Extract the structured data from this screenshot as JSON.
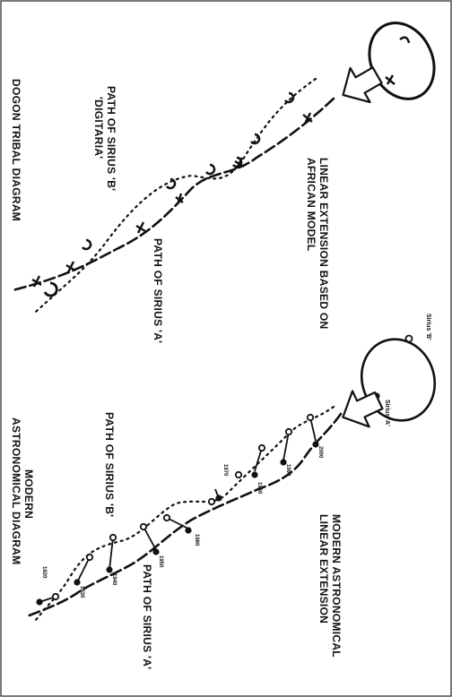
{
  "labels": {
    "dogon_caption": "DOGON TRIBAL DIAGRAM",
    "digitaria_line1": "PATH OF SIRIUS 'B'",
    "digitaria_line2": "'DIGITARIA'",
    "african_line1": "LINEAR EXTENSION BASED ON",
    "african_line2": "AFRICAN MODEL",
    "dogon_path_a": "PATH OF SIRIUS 'A'",
    "modern_caption_line1": "MODERN",
    "modern_caption_line2": "ASTRONOMICAL DIAGRAM",
    "modern_path_b": "PATH OF SIRIUS 'B'",
    "modern_ext_line1": "MODERN ASTRONOMICAL",
    "modern_ext_line2": "LINEAR EXTENSION",
    "modern_path_a": "PATH OF SIRIUS 'A'",
    "sirius_b_small": "Sirius 'B'",
    "sirius_a_small": "Sirius 'A'"
  },
  "year_marks": [
    "1910",
    "1920",
    "1930",
    "1940",
    "1950",
    "1960",
    "1970",
    "1980",
    "1990",
    "2000"
  ],
  "colors": {
    "ink": "#111111",
    "frame": "#222222",
    "background": "#ffffff"
  }
}
